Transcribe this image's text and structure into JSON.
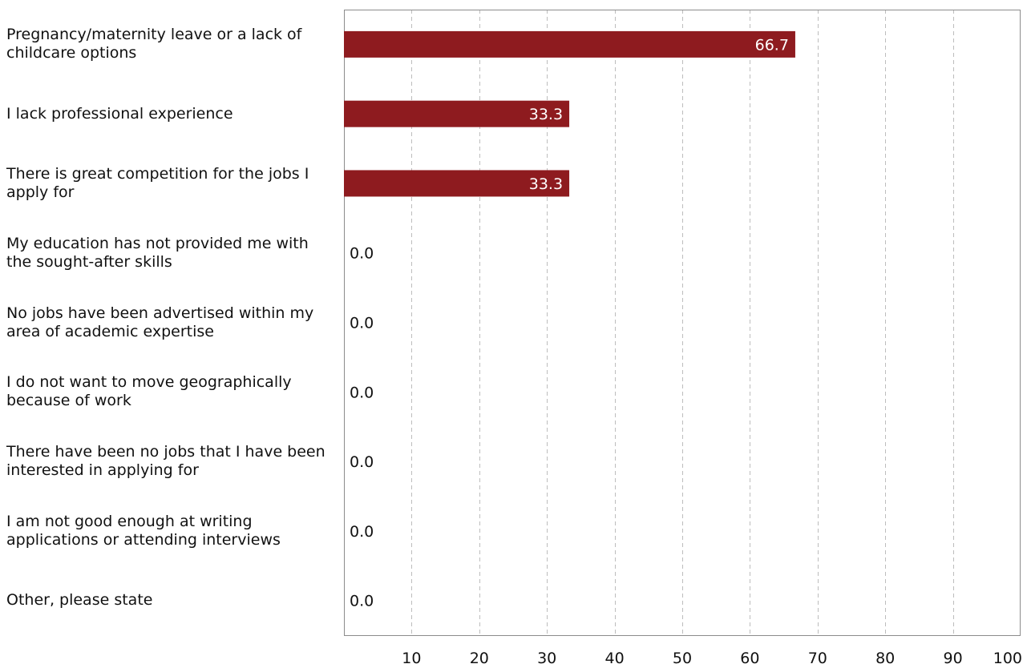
{
  "chart_data": {
    "type": "bar",
    "orientation": "horizontal",
    "title": "",
    "xlabel": "",
    "ylabel": "",
    "categories": [
      "Pregnancy/maternity leave or a lack of childcare options",
      "I lack professional experience",
      "There is great competition for the jobs I apply for",
      "My education has not provided me with the sought-after skills",
      "No jobs have been advertised within my area of academic expertise",
      "I do not want to move geographically because of work",
      "There have been no jobs that I have been interested in applying for",
      "I am not good enough at writing applications or attending interviews",
      "Other, please state"
    ],
    "values": [
      66.7,
      33.3,
      33.3,
      0.0,
      0.0,
      0.0,
      0.0,
      0.0,
      0.0
    ],
    "value_labels": [
      "66.7",
      "33.3",
      "33.3",
      "0.0",
      "0.0",
      "0.0",
      "0.0",
      "0.0",
      "0.0"
    ],
    "xlim": [
      0,
      100
    ],
    "xticks": [
      10,
      20,
      30,
      40,
      50,
      60,
      70,
      80,
      90,
      100
    ],
    "grid": "vertical dashed",
    "legend": "none",
    "colors": {
      "bar": "#8e1b1f",
      "grid": "#bdbdbd",
      "frame": "#8c8c8c",
      "inside_label": "#ffffff",
      "outside_label": "#111111"
    }
  }
}
